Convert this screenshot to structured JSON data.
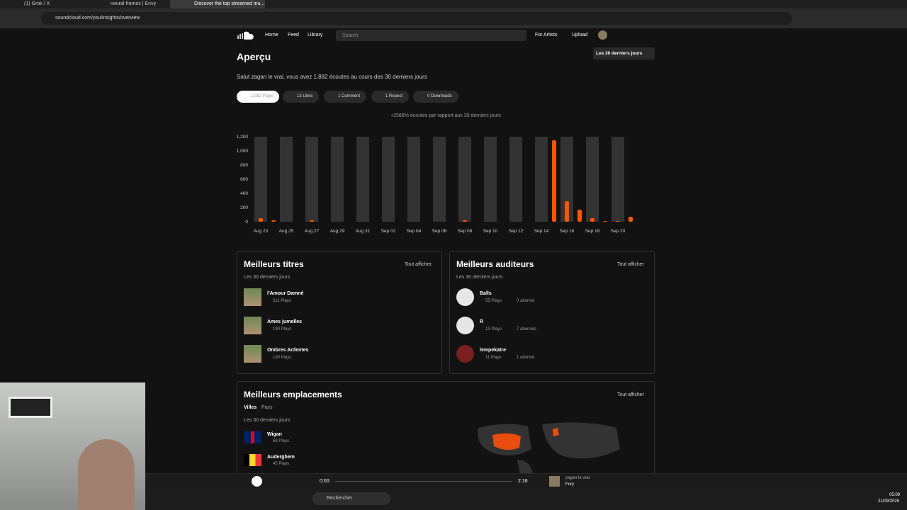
{
  "browser": {
    "tabs": [
      "(1) Grok / X",
      "neural frames | Envy",
      "Discover the top streamed mu..."
    ],
    "url": "soundcloud.com/you/insights/overview"
  },
  "nav": {
    "links": [
      "Home",
      "Feed",
      "Library"
    ],
    "search": "Search",
    "right_links": [
      "For Artists",
      "Upload"
    ]
  },
  "overview": {
    "title": "Aperçu",
    "range": "Les 30 derniers jours",
    "greeting": "Salut zagan le vrai, vous avez 1.882 écoutes au cours des 30 derniers jours",
    "pills": [
      "1.882 Plays",
      "13 Likes",
      "1 Comment",
      "1 Repost",
      "0 Downloads"
    ]
  },
  "chart_data": {
    "type": "bar",
    "subtitle": "+2588% écoutes par rapport aux 30 derniers jours",
    "categories": [
      "Aug 23",
      null,
      "Aug 25",
      null,
      "Aug 27",
      null,
      "Aug 29",
      null,
      "Aug 31",
      null,
      "Sep 02",
      null,
      "Sep 04",
      null,
      "Sep 06",
      null,
      "Sep 08",
      null,
      "Sep 10",
      null,
      "Sep 12",
      null,
      "Sep 14",
      null,
      "Sep 16",
      null,
      "Sep 18",
      null,
      "Sep 20",
      null
    ],
    "values": [
      50,
      20,
      0,
      0,
      20,
      0,
      0,
      0,
      0,
      0,
      0,
      0,
      0,
      0,
      0,
      0,
      20,
      0,
      0,
      0,
      0,
      0,
      0,
      1150,
      290,
      170,
      50,
      10,
      10,
      70
    ],
    "color": "#ff5500",
    "ylim": [
      0,
      1200
    ],
    "yticks": [
      0,
      200,
      400,
      600,
      800,
      {
        "value": 1000,
        "label": "1,000"
      },
      {
        "value": 1200,
        "label": "1,200"
      }
    ]
  },
  "top_tracks": {
    "title": "Meilleurs titres",
    "link": "Tout afficher",
    "period": "Les 30 derniers jours",
    "items": [
      {
        "name": "l'Amour Damné",
        "plays": "211 Plays"
      },
      {
        "name": "Ames jumelles",
        "plays": "190 Plays"
      },
      {
        "name": "Ombres Ardentes",
        "plays": "190 Plays"
      }
    ]
  },
  "top_listeners": {
    "title": "Meilleurs auditeurs",
    "link": "Tout afficher",
    "period": "Les 30 derniers jours",
    "items": [
      {
        "name": "Balls",
        "plays": "55 Plays",
        "followers": "0 abonné"
      },
      {
        "name": "R",
        "plays": "13 Plays",
        "followers": "7 abonnés"
      },
      {
        "name": "lempekatre",
        "plays": "11 Plays",
        "followers": "1 abonné"
      }
    ]
  },
  "locations": {
    "title": "Meilleurs emplacements",
    "link": "Tout afficher",
    "tabs": [
      "Villes",
      "Pays"
    ],
    "period": "Les 30 derniers jours",
    "items": [
      {
        "name": "Wigan",
        "plays": "58 Plays"
      },
      {
        "name": "Auderghem",
        "plays": "45 Plays"
      }
    ]
  },
  "player": {
    "position": "0:00",
    "duration": "2:16",
    "artist": "zagan le vrai",
    "track": "Fury"
  },
  "taskbar": {
    "search": "Rechercher",
    "time": "05:09",
    "date": "21/09/2025"
  }
}
